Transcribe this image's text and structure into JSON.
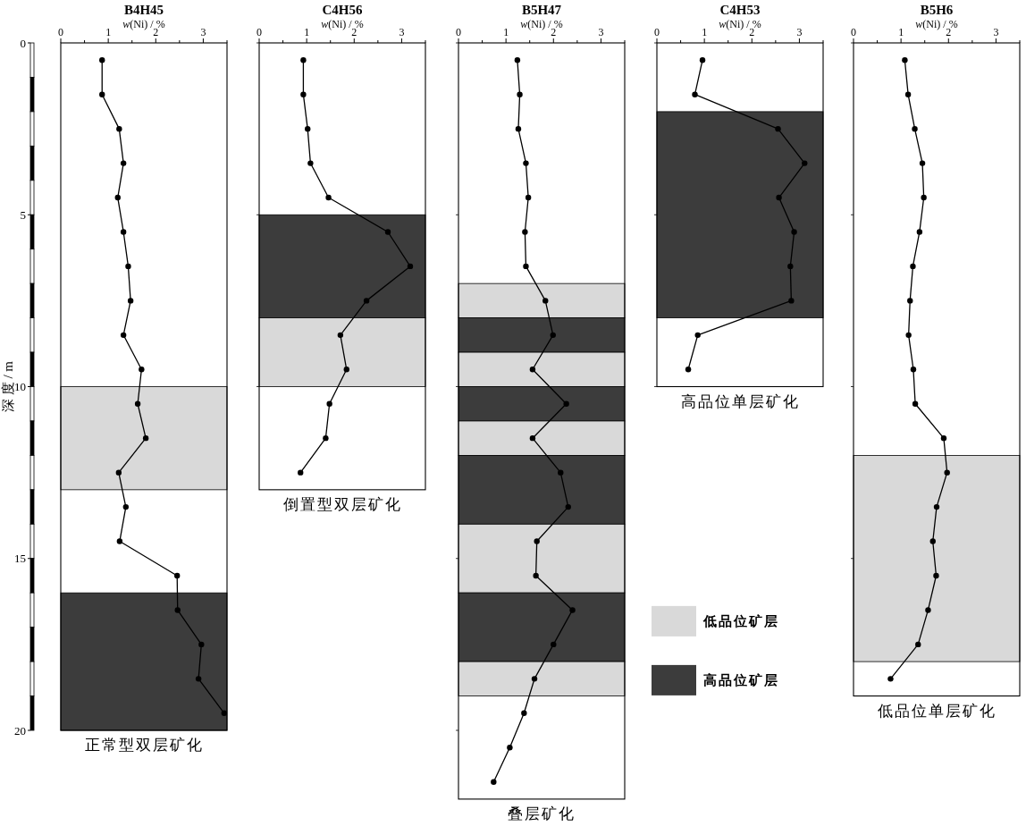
{
  "chart_data": [
    {
      "type": "line",
      "orientation": "horizontal",
      "title": "B4H45",
      "xlabel": "*w*(Ni) / %",
      "ylabel": "深 度 / m",
      "annotations": [
        "正常型双层矿化"
      ],
      "marker": "circle",
      "line_style": "solid",
      "x": [
        0.5,
        1.5,
        2.5,
        3.5,
        4.5,
        5.5,
        6.5,
        7.5,
        8.5,
        9.5,
        10.5,
        11.5,
        12.5,
        13.5,
        14.5,
        15.5,
        16.5,
        17.5,
        18.5,
        19.5
      ],
      "series": [
        {
          "color": "#000000",
          "values": [
            0.87,
            0.87,
            1.23,
            1.32,
            1.2,
            1.32,
            1.42,
            1.47,
            1.32,
            1.7,
            1.62,
            1.79,
            1.22,
            1.37,
            1.24,
            2.45,
            2.46,
            2.96,
            2.9,
            3.44
          ]
        }
      ],
      "xlim": [
        0,
        3.5
      ],
      "xticks": [
        0,
        {
          "value": 0.5,
          "label": null
        },
        1,
        {
          "value": 1.5,
          "label": null
        },
        2,
        {
          "value": 2.5,
          "label": null
        },
        3,
        {
          "value": 3.5,
          "label": null
        }
      ],
      "ylim": [
        20,
        0
      ],
      "yticks": [
        0,
        5,
        10,
        15,
        20
      ],
      "bands": [
        {
          "axis": "y",
          "from": 10,
          "to": 13,
          "color": "#d9d9d9"
        },
        {
          "axis": "y",
          "from": 16,
          "to": 20,
          "color": "#3c3c3c"
        }
      ]
    },
    {
      "type": "line",
      "orientation": "horizontal",
      "title": "C4H56",
      "xlabel": "*w*(Ni) / %",
      "annotations": [
        "倒置型双层矿化"
      ],
      "marker": "circle",
      "line_style": "solid",
      "tick_labels": "x",
      "x": [
        0.5,
        1.5,
        2.5,
        3.5,
        4.5,
        5.5,
        6.5,
        7.5,
        8.5,
        9.5,
        10.5,
        11.5,
        12.5
      ],
      "series": [
        {
          "color": "#000000",
          "values": [
            0.93,
            0.93,
            1.02,
            1.08,
            1.46,
            2.71,
            3.18,
            2.26,
            1.71,
            1.84,
            1.48,
            1.4,
            0.87
          ]
        }
      ],
      "xlim": [
        0,
        3.5
      ],
      "xticks": [
        0,
        {
          "value": 0.5,
          "label": null
        },
        1,
        {
          "value": 1.5,
          "label": null
        },
        2,
        {
          "value": 2.5,
          "label": null
        },
        3,
        {
          "value": 3.5,
          "label": null
        }
      ],
      "ylim": [
        13,
        0
      ],
      "yticks": [
        0,
        5,
        10
      ],
      "bands": [
        {
          "axis": "y",
          "from": 5,
          "to": 8,
          "color": "#3c3c3c"
        },
        {
          "axis": "y",
          "from": 8,
          "to": 10,
          "color": "#d9d9d9"
        }
      ]
    },
    {
      "type": "line",
      "orientation": "horizontal",
      "title": "B5H47",
      "xlabel": "*w*(Ni) / %",
      "annotations": [
        "叠层矿化"
      ],
      "marker": "circle",
      "line_style": "solid",
      "tick_labels": "x",
      "legend": "right",
      "x": [
        0.5,
        1.5,
        2.5,
        3.5,
        4.5,
        5.5,
        6.5,
        7.5,
        8.5,
        9.5,
        10.5,
        11.5,
        12.5,
        13.5,
        14.5,
        15.5,
        16.5,
        17.5,
        18.5,
        19.5,
        20.5,
        21.5
      ],
      "series": [
        {
          "color": "#000000",
          "values": [
            1.24,
            1.29,
            1.26,
            1.42,
            1.47,
            1.4,
            1.42,
            1.83,
            1.99,
            1.56,
            2.27,
            1.56,
            2.15,
            2.31,
            1.65,
            1.63,
            2.4,
            2.0,
            1.6,
            1.38,
            1.08,
            0.74
          ]
        }
      ],
      "xlim": [
        0,
        3.5
      ],
      "xticks": [
        0,
        {
          "value": 0.5,
          "label": null
        },
        1,
        {
          "value": 1.5,
          "label": null
        },
        2,
        {
          "value": 2.5,
          "label": null
        },
        3,
        {
          "value": 3.5,
          "label": null
        }
      ],
      "ylim": [
        22,
        0
      ],
      "yticks": [
        0,
        5,
        10,
        15,
        20
      ],
      "bands": [
        {
          "axis": "y",
          "from": 7,
          "to": 8,
          "color": "#d9d9d9",
          "label": "低品位矿层"
        },
        {
          "axis": "y",
          "from": 8,
          "to": 9,
          "color": "#3c3c3c",
          "label": "高品位矿层"
        },
        {
          "axis": "y",
          "from": 9,
          "to": 10,
          "color": "#d9d9d9"
        },
        {
          "axis": "y",
          "from": 10,
          "to": 11,
          "color": "#3c3c3c"
        },
        {
          "axis": "y",
          "from": 11,
          "to": 12,
          "color": "#d9d9d9"
        },
        {
          "axis": "y",
          "from": 12,
          "to": 14,
          "color": "#3c3c3c"
        },
        {
          "axis": "y",
          "from": 14,
          "to": 16,
          "color": "#d9d9d9"
        },
        {
          "axis": "y",
          "from": 16,
          "to": 18,
          "color": "#3c3c3c"
        },
        {
          "axis": "y",
          "from": 18,
          "to": 19,
          "color": "#d9d9d9"
        }
      ]
    },
    {
      "type": "line",
      "orientation": "horizontal",
      "title": "C4H53",
      "xlabel": "*w*(Ni) / %",
      "annotations": [
        "高品位单层矿化"
      ],
      "marker": "circle",
      "line_style": "solid",
      "tick_labels": "x",
      "x": [
        0.5,
        1.5,
        2.5,
        3.5,
        4.5,
        5.5,
        6.5,
        7.5,
        8.5,
        9.5
      ],
      "series": [
        {
          "color": "#000000",
          "values": [
            0.96,
            0.8,
            2.55,
            3.11,
            2.57,
            2.89,
            2.81,
            2.83,
            0.86,
            0.66
          ]
        }
      ],
      "xlim": [
        0,
        3.5
      ],
      "xticks": [
        0,
        {
          "value": 0.5,
          "label": null
        },
        1,
        {
          "value": 1.5,
          "label": null
        },
        2,
        {
          "value": 2.5,
          "label": null
        },
        3,
        {
          "value": 3.5,
          "label": null
        }
      ],
      "ylim": [
        10,
        0
      ],
      "yticks": [
        0,
        5,
        10
      ],
      "bands": [
        {
          "axis": "y",
          "from": 2,
          "to": 8,
          "color": "#3c3c3c"
        }
      ]
    },
    {
      "type": "line",
      "orientation": "horizontal",
      "title": "B5H6",
      "xlabel": "*w*(Ni) / %",
      "annotations": [
        "低品位单层矿化"
      ],
      "marker": "circle",
      "line_style": "solid",
      "tick_labels": "x",
      "x": [
        0.5,
        1.5,
        2.5,
        3.5,
        4.5,
        5.5,
        6.5,
        7.5,
        8.5,
        9.5,
        10.5,
        11.5,
        12.5,
        13.5,
        14.5,
        15.5,
        16.5,
        17.5,
        18.5
      ],
      "series": [
        {
          "color": "#000000",
          "values": [
            1.08,
            1.15,
            1.29,
            1.45,
            1.48,
            1.39,
            1.25,
            1.19,
            1.16,
            1.26,
            1.3,
            1.9,
            1.97,
            1.75,
            1.67,
            1.74,
            1.57,
            1.36,
            0.78
          ]
        }
      ],
      "xlim": [
        0,
        3.5
      ],
      "xticks": [
        0,
        {
          "value": 0.5,
          "label": null
        },
        1,
        {
          "value": 1.5,
          "label": null
        },
        2,
        {
          "value": 2.5,
          "label": null
        },
        3,
        {
          "value": 3.5,
          "label": null
        }
      ],
      "ylim": [
        19,
        0
      ],
      "yticks": [
        0,
        5,
        10,
        15
      ],
      "bands": [
        {
          "axis": "y",
          "from": 12,
          "to": 18,
          "color": "#d9d9d9"
        }
      ]
    }
  ]
}
